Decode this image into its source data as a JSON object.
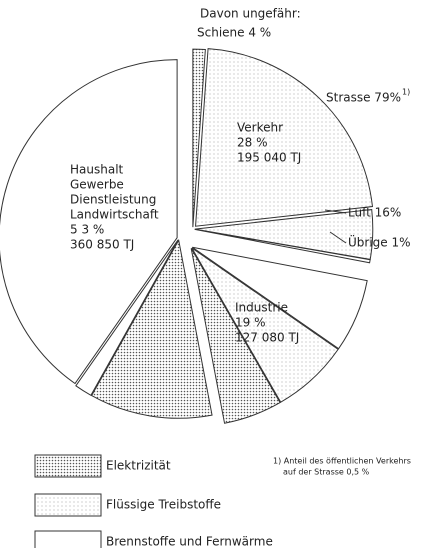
{
  "chart_data": {
    "type": "pie",
    "sectors": [
      {
        "name_lines": [
          "Verkehr"
        ],
        "value": 28,
        "value_label": "28 %",
        "energy_label": "195 040 TJ",
        "parts": [
          {
            "label": "Schiene 4 %",
            "value": 4,
            "fill": "elektrizitaet"
          },
          {
            "label": "Strasse 79%",
            "note": "1)",
            "value": 79,
            "fill": "fluessig"
          },
          {
            "label": "Luft 16%",
            "value": 16,
            "fill": "fluessig"
          },
          {
            "label": "Übrige 1%",
            "value": 1,
            "fill": "brenn"
          }
        ],
        "heading": "Davon ungefähr:"
      },
      {
        "name_lines": [
          "Industrie"
        ],
        "value": 19,
        "value_label": "19 %",
        "energy_label": "127 080 TJ",
        "parts": [
          {
            "value": 35,
            "fill": "brenn"
          },
          {
            "value": 37,
            "fill": "fluessig"
          },
          {
            "value": 28,
            "fill": "elektrizitaet"
          }
        ]
      },
      {
        "name_lines": [
          "Haushalt",
          "Gewerbe",
          "Dienstleistung",
          "Landwirtschaft"
        ],
        "value": 53,
        "value_label": "5 3 %",
        "energy_label": "360 850 TJ",
        "parts": [
          {
            "value": 21,
            "fill": "elektrizitaet"
          },
          {
            "value": 3,
            "fill": "brenn"
          },
          {
            "value": 76,
            "fill": "brenn"
          }
        ]
      }
    ],
    "legend": [
      {
        "fill": "elektrizitaet",
        "label": "Elektrizität"
      },
      {
        "fill": "fluessig",
        "label": "Flüssige Treibstoffe"
      },
      {
        "fill": "brenn",
        "label": "Brennstoffe und Fernwärme"
      }
    ],
    "footnote": [
      "1) Anteil des öffentlichen Verkehrs",
      "auf der Strasse  0,5 %"
    ]
  }
}
